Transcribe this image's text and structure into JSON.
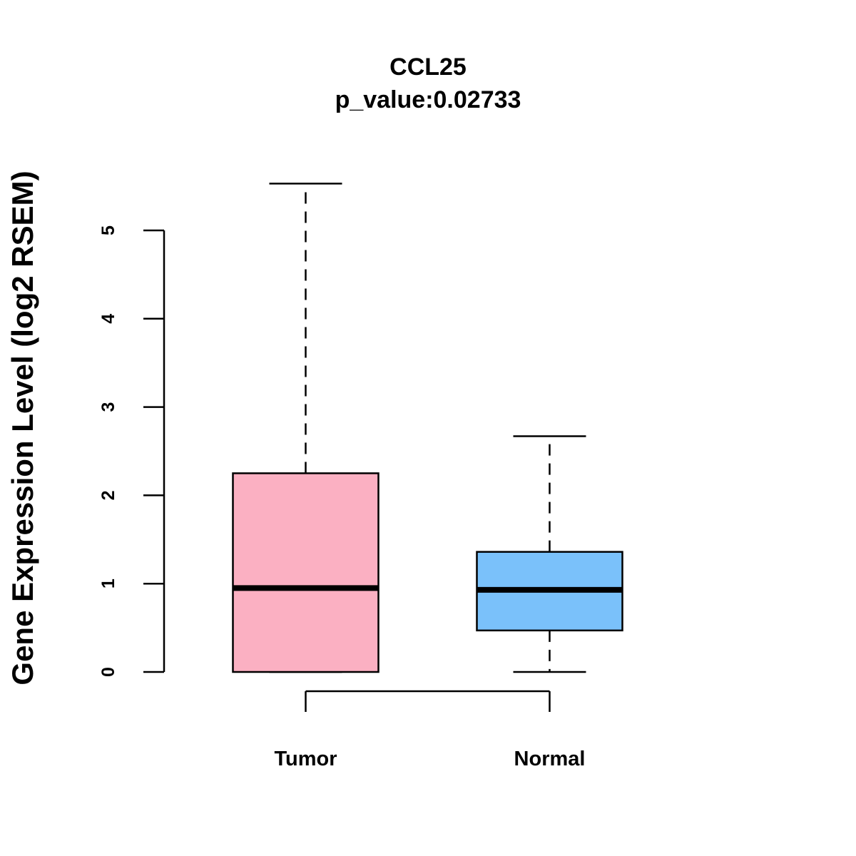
{
  "chart_data": {
    "type": "boxplot",
    "title": "CCL25",
    "subtitle": "p_value:0.02733",
    "xlabel": "",
    "ylabel": "Gene Expression Level (log2 RSEM)",
    "ylim": [
      0,
      5
    ],
    "yticks": [
      0,
      1,
      2,
      3,
      4,
      5
    ],
    "grid": false,
    "categories": [
      "Tumor",
      "Normal"
    ],
    "series": [
      {
        "name": "Tumor",
        "color": "#FBB0C2",
        "min": 0.0,
        "q1": 0.0,
        "median": 0.95,
        "q3": 2.25,
        "max": 5.53
      },
      {
        "name": "Normal",
        "color": "#7AC1FA",
        "min": 0.0,
        "q1": 0.47,
        "median": 0.93,
        "q3": 1.36,
        "max": 2.67
      }
    ]
  }
}
